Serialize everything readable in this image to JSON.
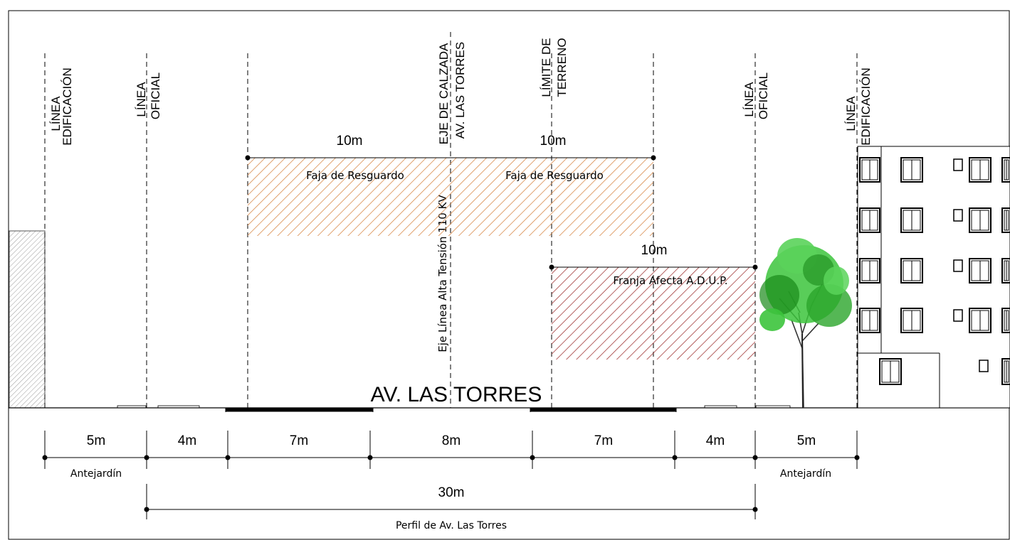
{
  "vertical_labels": {
    "linea_edificacion_left": [
      "LÍNEA",
      "EDIFICACIÓN"
    ],
    "linea_oficial_left": [
      "LÍNEA",
      "OFICIAL"
    ],
    "eje_calzada": [
      "EJE DE CALZADA",
      "AV. LAS TORRES"
    ],
    "limite_terreno": [
      "LÍMITE DE",
      "TERRENO"
    ],
    "linea_oficial_right": [
      "LÍNEA",
      "OFICIAL"
    ],
    "linea_edificacion_right": [
      "LÍNEA",
      "EDIFICACIÓN"
    ],
    "eje_alta_tension": "Eje Línea Alta Tensión 110 KV"
  },
  "zones": {
    "faja_left": {
      "label": "Faja de Resguardo",
      "width": "10m",
      "color": "#d98a4a"
    },
    "faja_right": {
      "label": "Faja de Resguardo",
      "width": "10m",
      "color": "#d98a4a"
    },
    "franja": {
      "label": "Franja Afecta A.D.U.P.",
      "width": "10m",
      "color": "#a33a3a"
    }
  },
  "street_name": "AV. LAS TORRES",
  "dimensions": {
    "segments": [
      "5m",
      "4m",
      "7m",
      "8m",
      "7m",
      "4m",
      "5m"
    ],
    "antejardin_left": "Antejardín",
    "antejardin_right": "Antejardín",
    "total": "30m",
    "perfil": "Perfil de Av. Las Torres"
  },
  "colors": {
    "tree_green": "#3cc43c",
    "tree_dark": "#1a8a1a",
    "wall_hatch": "#999999"
  }
}
